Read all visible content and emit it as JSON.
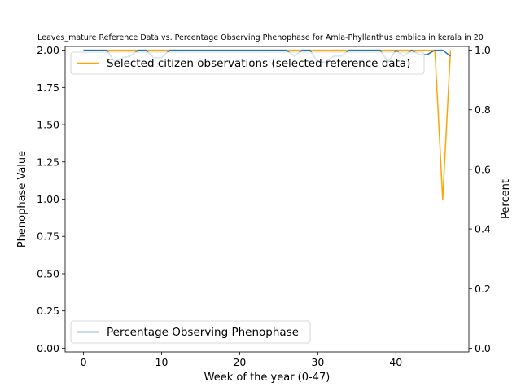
{
  "chart_data": {
    "type": "line",
    "title": "Leaves_mature Reference Data vs. Percentage Observing Phenophase for Amla-Phyllanthus emblica in kerala in 20",
    "xlabel": "Week of the year (0-47)",
    "ylabel_left": "Phenophase Value",
    "ylabel_right": "Percent",
    "xlim": [
      -2.35,
      49.35
    ],
    "ylim_left": [
      -0.025,
      2.025
    ],
    "ylim_right": [
      -0.0125,
      1.0125
    ],
    "x_ticks": [
      0,
      10,
      20,
      30,
      40
    ],
    "y_ticks_left": [
      0.0,
      0.25,
      0.5,
      0.75,
      1.0,
      1.25,
      1.5,
      1.75,
      2.0
    ],
    "y_ticks_left_labels": [
      "0.00",
      "0.25",
      "0.50",
      "0.75",
      "1.00",
      "1.25",
      "1.50",
      "1.75",
      "2.00"
    ],
    "y_ticks_right": [
      0.0,
      0.2,
      0.4,
      0.6,
      0.8,
      1.0
    ],
    "y_ticks_right_labels": [
      "0.0",
      "0.2",
      "0.4",
      "0.6",
      "0.8",
      "1.0"
    ],
    "grid": false,
    "series": [
      {
        "name": "Selected citizen observations (selected reference data)",
        "color": "#ffa500",
        "axis": "left",
        "x": [
          0,
          1,
          2,
          3,
          4,
          5,
          6,
          7,
          8,
          9,
          10,
          11,
          12,
          13,
          14,
          15,
          16,
          17,
          18,
          19,
          20,
          21,
          22,
          23,
          24,
          25,
          26,
          27,
          28,
          29,
          30,
          31,
          32,
          33,
          34,
          35,
          36,
          37,
          38,
          39,
          40,
          41,
          42,
          43,
          44,
          45,
          46,
          47
        ],
        "values": [
          2,
          2,
          2,
          2,
          2,
          2,
          2,
          2,
          2,
          2,
          2,
          2,
          2,
          2,
          2,
          2,
          2,
          2,
          2,
          2,
          2,
          2,
          2,
          2,
          2,
          2,
          2,
          2,
          2,
          2,
          2,
          2,
          2,
          2,
          2,
          2,
          2,
          2,
          2,
          2,
          2,
          2,
          2,
          2,
          2,
          2,
          1,
          2
        ],
        "legend_position": "upper left"
      },
      {
        "name": "Percentage Observing Phenophase",
        "color": "#1f77b4",
        "axis": "right",
        "x": [
          0,
          1,
          2,
          3,
          4,
          5,
          6,
          7,
          8,
          9,
          10,
          11,
          12,
          13,
          14,
          15,
          16,
          17,
          18,
          19,
          20,
          21,
          22,
          23,
          24,
          25,
          26,
          27,
          28,
          29,
          30,
          31,
          32,
          33,
          34,
          35,
          36,
          37,
          38,
          39,
          40,
          41,
          42,
          43,
          44,
          45,
          46,
          47
        ],
        "values": [
          1.0,
          1.0,
          1.0,
          1.0,
          0.96,
          0.975,
          0.98,
          1.0,
          1.0,
          0.975,
          0.975,
          1.0,
          1.0,
          1.0,
          1.0,
          1.0,
          1.0,
          1.0,
          1.0,
          1.0,
          1.0,
          1.0,
          1.0,
          1.0,
          1.0,
          1.0,
          1.0,
          0.98,
          1.0,
          1.0,
          0.96,
          0.96,
          0.98,
          0.98,
          1.0,
          1.0,
          1.0,
          1.0,
          1.0,
          0.96,
          1.0,
          0.98,
          1.0,
          0.985,
          0.985,
          1.0,
          1.0,
          0.98
        ],
        "legend_position": "lower left"
      }
    ]
  }
}
